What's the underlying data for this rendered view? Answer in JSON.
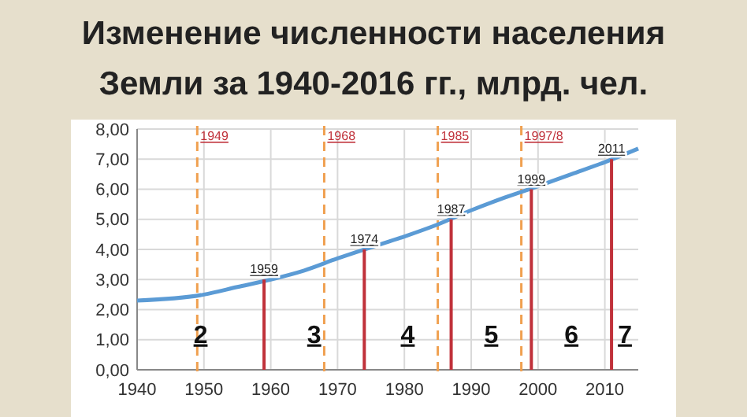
{
  "chart_data": {
    "type": "line",
    "title": "Изменение численности населения Земли за 1940-2016 гг., млрд. чел.",
    "x": [
      1940,
      1950,
      1955,
      1960,
      1965,
      1970,
      1975,
      1980,
      1985,
      1990,
      1995,
      2000,
      2005,
      2010,
      2015
    ],
    "series": [
      {
        "color": "#5b9bd5",
        "values": [
          2.3,
          2.5,
          2.75,
          3.0,
          3.3,
          3.7,
          4.07,
          4.43,
          4.83,
          5.3,
          5.72,
          6.1,
          6.5,
          6.9,
          7.35
        ]
      },
      {
        "type": "bar",
        "color": "#c0313a",
        "x": [
          1959,
          1974,
          1987,
          1999,
          2011
        ],
        "values": [
          3,
          4,
          5,
          6,
          7
        ]
      }
    ],
    "xlim": [
      1940,
      2015
    ],
    "xticks": [
      1940,
      1950,
      1960,
      1970,
      1980,
      1990,
      2000,
      2010
    ],
    "ylim": [
      0,
      8
    ],
    "yticks": [
      {
        "value": 0,
        "label": "0,00"
      },
      {
        "value": 1,
        "label": "1,00"
      },
      {
        "value": 2,
        "label": "2,00"
      },
      {
        "value": 3,
        "label": "3,00"
      },
      {
        "value": 4,
        "label": "4,00"
      },
      {
        "value": 5,
        "label": "5,00"
      },
      {
        "value": 6,
        "label": "6,00"
      },
      {
        "value": 7,
        "label": "7,00"
      },
      {
        "value": 8,
        "label": "8,00"
      }
    ],
    "grid": true,
    "ref_lines": [
      {
        "axis": "x",
        "value": 1949,
        "label": "1949",
        "color": "#f0a050",
        "line_style": "dashed"
      },
      {
        "axis": "x",
        "value": 1968,
        "label": "1968",
        "color": "#f0a050",
        "line_style": "dashed"
      },
      {
        "axis": "x",
        "value": 1985,
        "label": "1985",
        "color": "#f0a050",
        "line_style": "dashed"
      },
      {
        "axis": "x",
        "value": 1997.5,
        "label": "1997/8",
        "color": "#f0a050",
        "line_style": "dashed"
      }
    ],
    "annotations": [
      {
        "text": "1959",
        "x": 1959,
        "y": 3
      },
      {
        "text": "1974",
        "x": 1974,
        "y": 4
      },
      {
        "text": "1987",
        "x": 1987,
        "y": 5
      },
      {
        "text": "1999",
        "x": 1999,
        "y": 6
      },
      {
        "text": "2011",
        "x": 2011,
        "y": 7
      },
      "2",
      "3",
      "4",
      "5",
      "6",
      "7"
    ]
  }
}
